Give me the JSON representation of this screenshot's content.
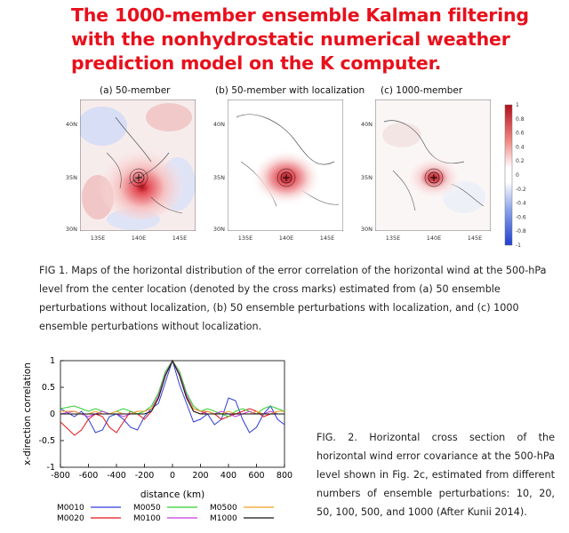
{
  "title": "The 1000-member ensemble Kalman filtering with the nonhydrostatic numerical weather prediction model on the K computer.",
  "fig1": {
    "panels": [
      {
        "label": "(a) 50-member"
      },
      {
        "label": "(b) 50-member with localization"
      },
      {
        "label": "(c) 1000-member"
      }
    ],
    "lat_labels": [
      "40N",
      "35N",
      "30N"
    ],
    "lon_labels": [
      "135E",
      "140E",
      "145E"
    ],
    "colorbar_labels": [
      "1",
      "0.8",
      "0.6",
      "0.4",
      "0.2",
      "0",
      "-0.2",
      "-0.4",
      "-0.6",
      "-0.8",
      "-1"
    ],
    "caption": "FIG 1. Maps of the horizontal distribution of the error correlation of the horizontal wind at the 500-hPa level from the center location (denoted by the cross marks) estimated from (a) 50 ensemble perturbations without localization, (b) 50 ensemble perturbations with localization, and (c) 1000 ensemble perturbations without localization.",
    "colors": {
      "positive": "#d7191c",
      "negative": "#2c5fd6"
    }
  },
  "fig2": {
    "caption": "FIG. 2. Horizontal cross section of the horizontal wind error covariance at the 500-hPa level shown in Fig. 2c, estimated from different numbers of ensemble perturbations: 10, 20, 50, 100, 500, and 1000 (After Kunii 2014)."
  },
  "chart_data": {
    "type": "line",
    "xlabel": "distance (km)",
    "ylabel": "x-direction correlation",
    "xlim": [
      -800,
      800
    ],
    "ylim": [
      -1,
      1
    ],
    "xticks": [
      "-800",
      "-600",
      "-400",
      "-200",
      "0",
      "200",
      "400",
      "600",
      "800"
    ],
    "yticks": [
      "1",
      "0.5",
      "0",
      "-0.5",
      "-1"
    ],
    "legend_position": "bottom",
    "x": [
      -800,
      -700,
      -650,
      -600,
      -550,
      -500,
      -450,
      -400,
      -350,
      -300,
      -250,
      -200,
      -150,
      -100,
      -50,
      0,
      50,
      100,
      150,
      200,
      250,
      300,
      350,
      400,
      450,
      500,
      550,
      600,
      650,
      700,
      750,
      800
    ],
    "series": [
      {
        "name": "M0010",
        "color": "#2d3bd8",
        "values": [
          0.1,
          -0.05,
          0.05,
          -0.1,
          -0.35,
          -0.3,
          -0.05,
          0.0,
          -0.1,
          -0.25,
          -0.3,
          -0.05,
          0.1,
          0.2,
          0.6,
          1.0,
          0.55,
          0.2,
          -0.15,
          -0.1,
          0.0,
          -0.2,
          -0.1,
          0.3,
          0.25,
          -0.1,
          -0.35,
          -0.25,
          0.0,
          0.15,
          -0.1,
          -0.2
        ]
      },
      {
        "name": "M0020",
        "color": "#e0141c",
        "values": [
          -0.15,
          -0.4,
          -0.3,
          -0.1,
          0.0,
          -0.05,
          -0.25,
          -0.35,
          -0.15,
          0.05,
          0.0,
          -0.1,
          0.05,
          0.3,
          0.75,
          1.0,
          0.75,
          0.35,
          0.05,
          0.0,
          0.05,
          0.0,
          -0.1,
          -0.05,
          0.0,
          0.05,
          0.1,
          0.05,
          -0.05,
          0.0,
          0.05,
          0.05
        ]
      },
      {
        "name": "M0050",
        "color": "#2fd02f",
        "values": [
          0.1,
          0.15,
          0.1,
          0.05,
          0.1,
          0.05,
          0.0,
          0.05,
          0.1,
          0.05,
          0.0,
          0.05,
          0.15,
          0.4,
          0.8,
          1.0,
          0.8,
          0.4,
          0.15,
          0.05,
          0.1,
          0.05,
          0.0,
          -0.05,
          0.05,
          0.1,
          0.05,
          0.0,
          0.1,
          0.15,
          0.1,
          0.05
        ]
      },
      {
        "name": "M0100",
        "color": "#c43ad6",
        "values": [
          0.0,
          0.05,
          0.0,
          -0.05,
          0.0,
          0.05,
          0.0,
          0.0,
          -0.05,
          0.0,
          0.05,
          0.05,
          0.1,
          0.35,
          0.75,
          1.0,
          0.75,
          0.35,
          0.1,
          0.05,
          0.0,
          0.0,
          0.05,
          0.0,
          -0.05,
          0.0,
          0.05,
          0.0,
          0.0,
          0.05,
          0.0,
          0.0
        ]
      },
      {
        "name": "M0500",
        "color": "#f0a020",
        "values": [
          0.05,
          0.05,
          0.0,
          0.0,
          0.05,
          0.0,
          0.0,
          0.05,
          0.0,
          0.0,
          0.05,
          0.05,
          0.1,
          0.3,
          0.72,
          1.0,
          0.72,
          0.3,
          0.1,
          0.05,
          0.05,
          0.0,
          0.0,
          0.05,
          0.0,
          0.0,
          0.0,
          0.05,
          0.0,
          0.0,
          0.05,
          0.05
        ]
      },
      {
        "name": "M1000",
        "color": "#111111",
        "values": [
          0.0,
          0.0,
          0.0,
          0.0,
          0.0,
          0.0,
          0.0,
          0.0,
          0.0,
          0.0,
          0.0,
          0.0,
          0.05,
          0.3,
          0.72,
          1.0,
          0.72,
          0.3,
          0.05,
          0.0,
          0.0,
          0.0,
          0.0,
          0.0,
          0.0,
          0.0,
          0.0,
          0.0,
          0.0,
          0.0,
          0.0,
          0.0
        ]
      }
    ]
  }
}
